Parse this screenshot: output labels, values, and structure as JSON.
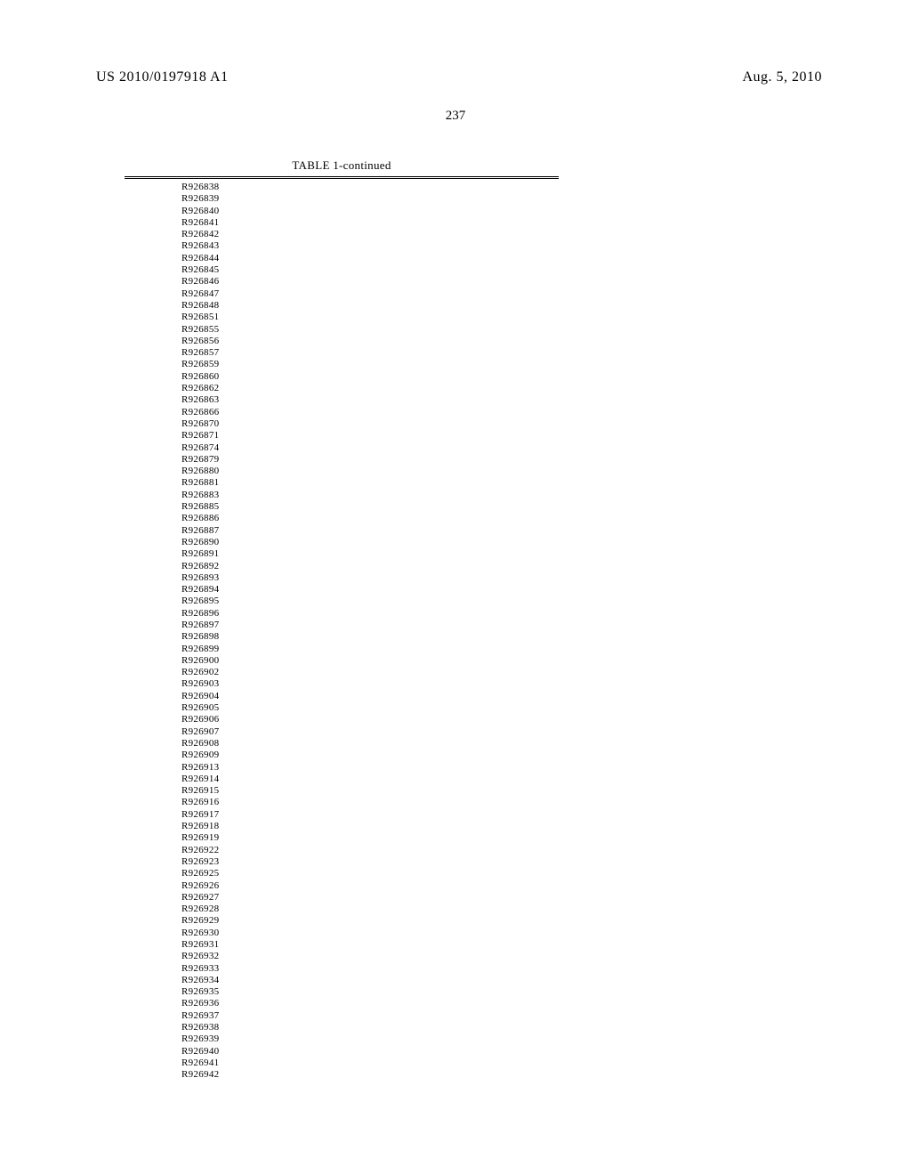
{
  "header": {
    "publication_number": "US 2010/0197918 A1",
    "publication_date": "Aug. 5, 2010",
    "page_number": "237"
  },
  "table": {
    "title": "TABLE 1-continued",
    "compounds": [
      "R926838",
      "R926839",
      "R926840",
      "R926841",
      "R926842",
      "R926843",
      "R926844",
      "R926845",
      "R926846",
      "R926847",
      "R926848",
      "R926851",
      "R926855",
      "R926856",
      "R926857",
      "R926859",
      "R926860",
      "R926862",
      "R926863",
      "R926866",
      "R926870",
      "R926871",
      "R926874",
      "R926879",
      "R926880",
      "R926881",
      "R926883",
      "R926885",
      "R926886",
      "R926887",
      "R926890",
      "R926891",
      "R926892",
      "R926893",
      "R926894",
      "R926895",
      "R926896",
      "R926897",
      "R926898",
      "R926899",
      "R926900",
      "R926902",
      "R926903",
      "R926904",
      "R926905",
      "R926906",
      "R926907",
      "R926908",
      "R926909",
      "R926913",
      "R926914",
      "R926915",
      "R926916",
      "R926917",
      "R926918",
      "R926919",
      "R926922",
      "R926923",
      "R926925",
      "R926926",
      "R926927",
      "R926928",
      "R926929",
      "R926930",
      "R926931",
      "R926932",
      "R926933",
      "R926934",
      "R926935",
      "R926936",
      "R926937",
      "R926938",
      "R926939",
      "R926940",
      "R926941",
      "R926942"
    ]
  },
  "styling": {
    "background_color": "#ffffff",
    "text_color": "#000000",
    "font_family": "Times New Roman",
    "header_fontsize": 16,
    "page_number_fontsize": 15,
    "table_title_fontsize": 13,
    "compound_fontsize": 11,
    "compound_line_height": 13.3,
    "rule_color": "#000000"
  }
}
